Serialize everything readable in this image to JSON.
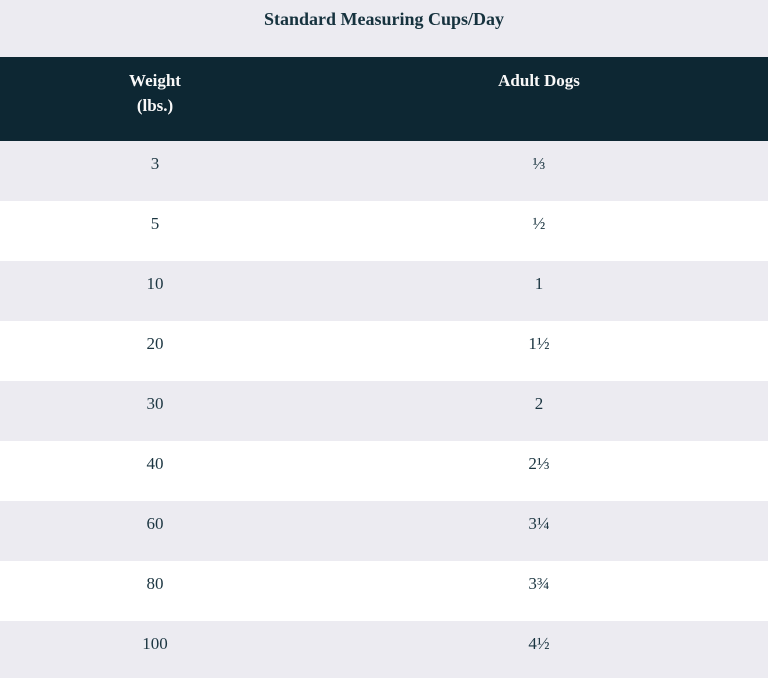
{
  "title": "Standard Measuring Cups/Day",
  "header": {
    "weight_line1": "Weight",
    "weight_line2": "(lbs.)",
    "adult_dogs": "Adult Dogs"
  },
  "table": {
    "rows": [
      [
        "3",
        "⅓"
      ],
      [
        "5",
        "½"
      ],
      [
        "10",
        "1"
      ],
      [
        "20",
        "1½"
      ],
      [
        "30",
        "2"
      ],
      [
        "40",
        "2⅓"
      ],
      [
        "60",
        "3¼"
      ],
      [
        "80",
        "3¾"
      ],
      [
        "100",
        "4½"
      ]
    ]
  },
  "colors": {
    "header_background": "#0d2733",
    "stripe_background": "#ecebf1",
    "row_background": "#ffffff",
    "text": "#1b3541",
    "header_text": "#f8f8f8"
  },
  "chart_data": {
    "type": "table",
    "title": "Standard Measuring Cups/Day",
    "columns": [
      "Weight (lbs.)",
      "Adult Dogs"
    ],
    "rows": [
      [
        3,
        "⅓"
      ],
      [
        5,
        "½"
      ],
      [
        10,
        "1"
      ],
      [
        20,
        "1½"
      ],
      [
        30,
        "2"
      ],
      [
        40,
        "2⅓"
      ],
      [
        60,
        "3¼"
      ],
      [
        80,
        "3¾"
      ],
      [
        100,
        "4½"
      ]
    ],
    "notes": "Cups of food per day for adult dogs by body weight; striped rows, dark teal header band, gray title band"
  }
}
